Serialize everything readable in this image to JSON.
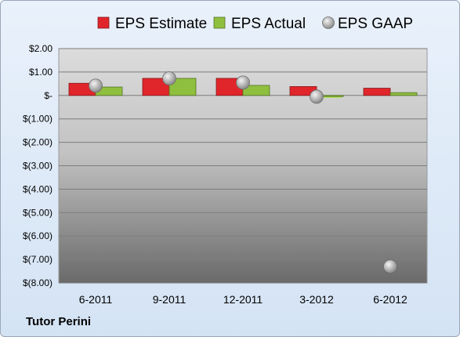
{
  "chart_data": {
    "type": "bar",
    "categories": [
      "6-2011",
      "9-2011",
      "12-2011",
      "3-2012",
      "6-2012"
    ],
    "series": [
      {
        "name": "EPS Estimate",
        "kind": "bar",
        "color": "#e0262b",
        "values": [
          0.52,
          0.73,
          0.73,
          0.38,
          0.31
        ]
      },
      {
        "name": "EPS Actual",
        "kind": "bar",
        "color": "#8fbf3f",
        "values": [
          0.36,
          0.73,
          0.43,
          -0.05,
          0.12
        ]
      },
      {
        "name": "EPS GAAP",
        "kind": "scatter",
        "color": "#a8a8a8",
        "values": [
          0.42,
          0.73,
          0.55,
          -0.05,
          -7.3
        ]
      }
    ],
    "ylim": [
      -8.0,
      2.0
    ],
    "yticks": [
      2,
      1,
      0,
      -1,
      -2,
      -3,
      -4,
      -5,
      -6,
      -7,
      -8
    ],
    "ytick_labels": [
      "$2.00",
      "$1.00",
      "$-",
      "$(1.00)",
      "$(2.00)",
      "$(3.00)",
      "$(4.00)",
      "$(5.00)",
      "$(6.00)",
      "$(7.00)",
      "$(8.00)"
    ],
    "legend": "top",
    "grid": true
  },
  "footer": {
    "company": "Tutor Perini"
  }
}
